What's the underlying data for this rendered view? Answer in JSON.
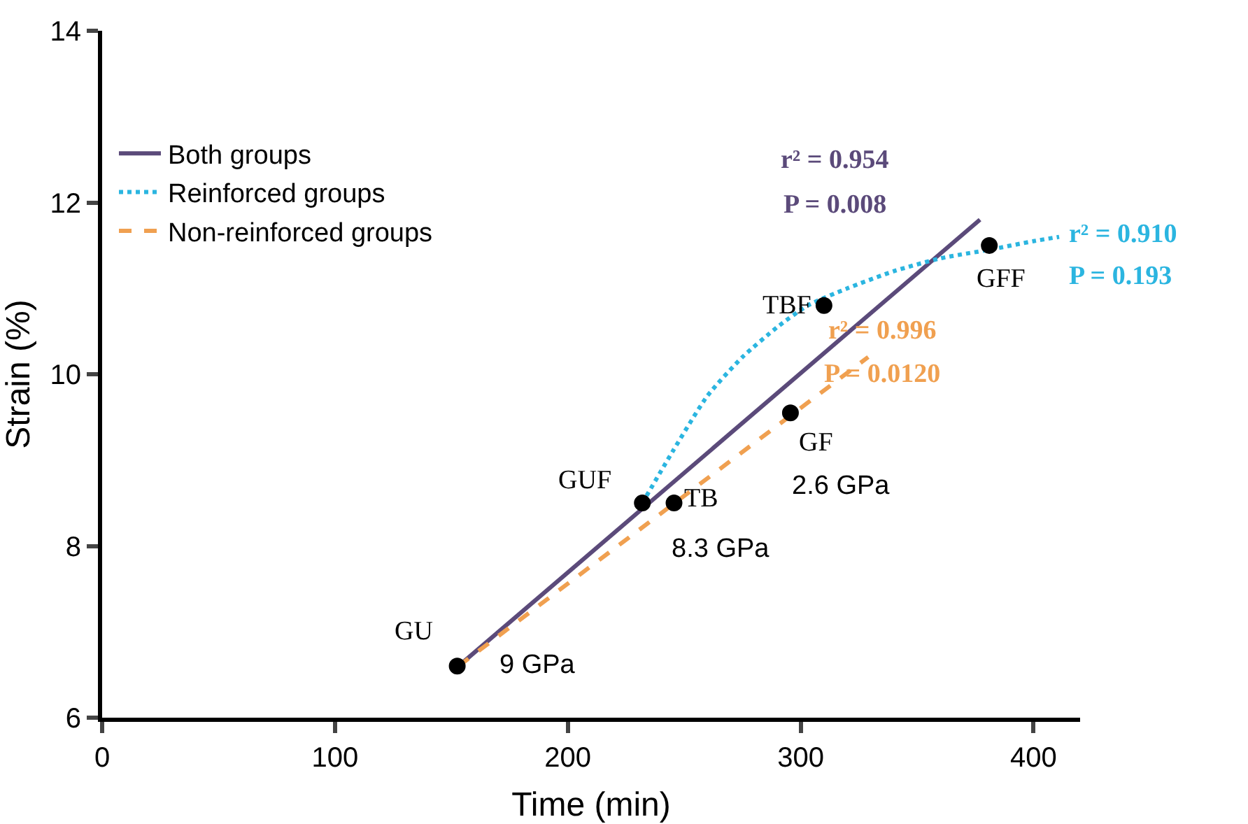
{
  "chart_data": {
    "type": "line",
    "xlabel": "Time (min)",
    "ylabel": "Strain (%)",
    "xlim": [
      0,
      420
    ],
    "xticks": [
      0,
      100,
      200,
      300,
      400
    ],
    "ylim": [
      6,
      14
    ],
    "yticks": [
      6,
      8,
      10,
      12,
      14
    ],
    "grid": false,
    "legend": "top left",
    "series": [
      {
        "name": "Both groups",
        "color": "#5b4a7a",
        "line_style": "solid",
        "marker": "none",
        "x": [
          153,
          377
        ],
        "values": [
          6.6,
          11.8
        ]
      },
      {
        "name": "Reinforced groups",
        "color": "#2bb5e0",
        "line_style": "dotted",
        "marker": "none",
        "x": [
          232,
          245,
          260,
          275,
          290,
          303,
          320,
          340,
          360,
          381,
          400,
          411
        ],
        "values": [
          8.5,
          9.1,
          9.75,
          10.2,
          10.55,
          10.8,
          11.0,
          11.2,
          11.35,
          11.45,
          11.55,
          11.6
        ]
      },
      {
        "name": "Non-reinforced groups",
        "color": "#f0a050",
        "line_style": "dashed",
        "marker": "none",
        "x": [
          153,
          329
        ],
        "values": [
          6.6,
          10.2
        ]
      },
      {
        "type": "scatter",
        "color": "#000000",
        "marker": "circle",
        "x": [
          152.5,
          232,
          245.6,
          295.6,
          310,
          381
        ],
        "values": [
          6.6,
          8.5,
          8.5,
          9.55,
          10.8,
          11.5
        ]
      }
    ],
    "annotations": [
      "GU",
      "9 GPa",
      "GUF",
      "TB",
      "8.3 GPa",
      "GF",
      "2.6 GPa",
      "TBF",
      "GFF",
      "r² = 0.954",
      "P = 0.008",
      "r² = 0.910",
      "P = 0.193",
      "r² = 0.996",
      "P = 0.0120"
    ]
  }
}
